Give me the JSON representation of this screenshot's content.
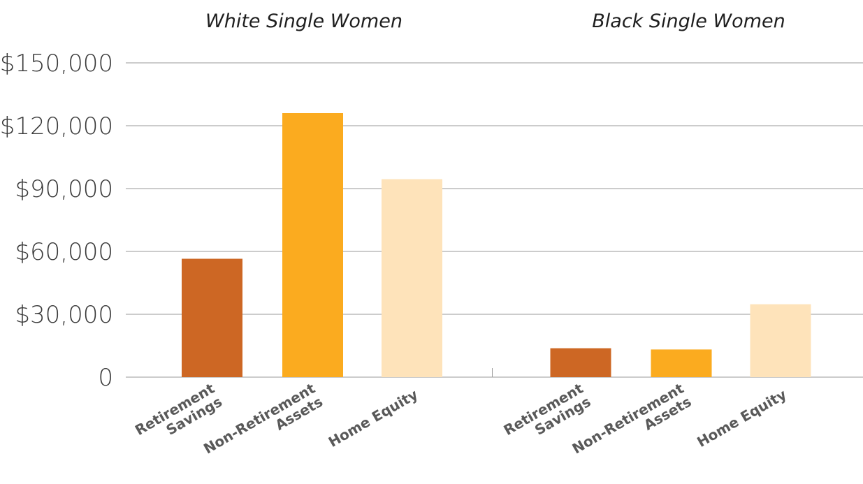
{
  "chart_data": {
    "type": "bar",
    "y_ticks": [
      "0",
      "$30,000",
      "$60,000",
      "$90,000",
      "$120,000",
      "$150,000"
    ],
    "y_tick_values": [
      0,
      30000,
      60000,
      90000,
      120000,
      150000
    ],
    "ylim": [
      0,
      150000
    ],
    "grid": true,
    "categories": [
      "Retirement Savings",
      "Non-Retirement Assets",
      "Home Equity"
    ],
    "category_lines": [
      [
        "Retirement",
        "Savings"
      ],
      [
        "Non-Retirement",
        "Assets"
      ],
      [
        "Home Equity"
      ]
    ],
    "colors": [
      "#cd6724",
      "#fbab1f",
      "#fee3ba"
    ],
    "groups": [
      {
        "title": "White Single Women",
        "values": [
          56500,
          126000,
          94500
        ]
      },
      {
        "title": "Black Single Women",
        "values": [
          13800,
          13200,
          34800
        ]
      }
    ]
  }
}
